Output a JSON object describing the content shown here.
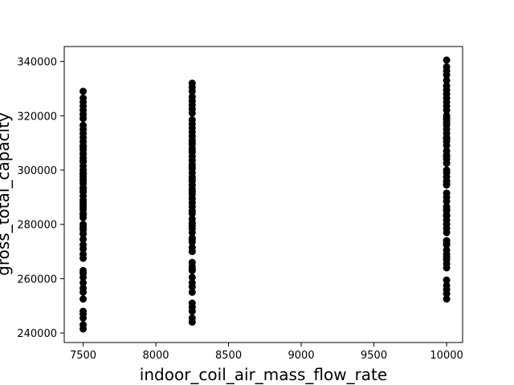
{
  "chart_data": {
    "type": "scatter",
    "title": "",
    "xlabel": "indoor_coil_air_mass_flow_rate",
    "ylabel": "gross_total_capacity",
    "xlim": [
      7370,
      10110
    ],
    "ylim": [
      236500,
      345500
    ],
    "xticks": [
      7500,
      8000,
      8500,
      9000,
      9500,
      10000
    ],
    "yticks": [
      240000,
      260000,
      280000,
      300000,
      320000,
      340000
    ],
    "grid": false,
    "marker_color": "#000000",
    "series": [
      {
        "x": [
          7500,
          7500,
          7500,
          7500,
          7500,
          7500,
          7500,
          7500,
          7500,
          7500,
          7500,
          7500,
          7500,
          7500,
          7500,
          7500,
          7500,
          7500,
          7500,
          7500,
          7500,
          7500,
          7500,
          7500,
          7500,
          7500,
          7500,
          7500,
          7500,
          7500,
          7500,
          7500,
          7500,
          7500,
          7500,
          7500,
          7500,
          7500,
          7500,
          7500,
          7500,
          7500,
          7500,
          7500,
          7500,
          7500,
          7500,
          7500,
          7500,
          7500,
          7500,
          7500,
          7500,
          7500,
          7500,
          7500,
          7500,
          7500,
          7500,
          7500,
          8250,
          8250,
          8250,
          8250,
          8250,
          8250,
          8250,
          8250,
          8250,
          8250,
          8250,
          8250,
          8250,
          8250,
          8250,
          8250,
          8250,
          8250,
          8250,
          8250,
          8250,
          8250,
          8250,
          8250,
          8250,
          8250,
          8250,
          8250,
          8250,
          8250,
          8250,
          8250,
          8250,
          8250,
          8250,
          8250,
          8250,
          8250,
          8250,
          8250,
          8250,
          8250,
          8250,
          8250,
          8250,
          8250,
          8250,
          8250,
          8250,
          8250,
          8250,
          8250,
          8250,
          8250,
          8250,
          8250,
          8250,
          8250,
          8250,
          8250,
          10000,
          10000,
          10000,
          10000,
          10000,
          10000,
          10000,
          10000,
          10000,
          10000,
          10000,
          10000,
          10000,
          10000,
          10000,
          10000,
          10000,
          10000,
          10000,
          10000,
          10000,
          10000,
          10000,
          10000,
          10000,
          10000,
          10000,
          10000,
          10000,
          10000,
          10000,
          10000,
          10000,
          10000,
          10000,
          10000,
          10000,
          10000,
          10000,
          10000,
          10000,
          10000,
          10000,
          10000,
          10000,
          10000,
          10000,
          10000,
          10000,
          10000,
          10000,
          10000,
          10000,
          10000,
          10000,
          10000,
          10000,
          10000,
          10000,
          10000
        ],
        "y": [
          241500,
          243000,
          245500,
          247000,
          248000,
          252500,
          255000,
          256500,
          258500,
          260500,
          262000,
          263000,
          267500,
          269000,
          271000,
          272500,
          274500,
          276500,
          278000,
          279000,
          282500,
          284000,
          285500,
          287000,
          289000,
          290500,
          292000,
          293500,
          295000,
          296000,
          297500,
          299000,
          300000,
          301500,
          303000,
          304500,
          306000,
          307500,
          309000,
          310500,
          312000,
          313500,
          315000,
          316500,
          319000,
          320500,
          322000,
          323500,
          325000,
          326500,
          329000,
          283500,
          293000,
          303500,
          288000,
          298500,
          308500,
          280000,
          286500,
          296500,
          244000,
          245500,
          248000,
          249500,
          251000,
          255000,
          257000,
          258500,
          260500,
          263000,
          264500,
          266000,
          270000,
          271500,
          273500,
          275000,
          277000,
          278500,
          280500,
          282000,
          285000,
          286500,
          288000,
          289500,
          291000,
          293000,
          294500,
          296000,
          297500,
          299000,
          300500,
          302000,
          303500,
          305000,
          306500,
          308000,
          309500,
          311000,
          312500,
          314000,
          317000,
          318500,
          321000,
          322500,
          324000,
          325500,
          327000,
          329000,
          330500,
          332000,
          284000,
          292000,
          301000,
          310000,
          274500,
          263500,
          279500,
          315500,
          296500,
          307000,
          252500,
          254500,
          256000,
          257500,
          259500,
          264000,
          265500,
          267000,
          269000,
          270500,
          272500,
          274000,
          278500,
          280000,
          281500,
          283000,
          285000,
          286500,
          288500,
          290000,
          294500,
          296000,
          297500,
          299000,
          302500,
          304000,
          305500,
          307000,
          309000,
          310500,
          312000,
          313500,
          315000,
          316500,
          318500,
          320000,
          322000,
          323500,
          325000,
          326500,
          329500,
          331000,
          333000,
          335000,
          336500,
          338000,
          340500,
          285500,
          295000,
          305000,
          311500,
          300000,
          317500,
          268000,
          273000,
          277000,
          283500,
          328000,
          319000,
          291500
        ]
      }
    ]
  }
}
